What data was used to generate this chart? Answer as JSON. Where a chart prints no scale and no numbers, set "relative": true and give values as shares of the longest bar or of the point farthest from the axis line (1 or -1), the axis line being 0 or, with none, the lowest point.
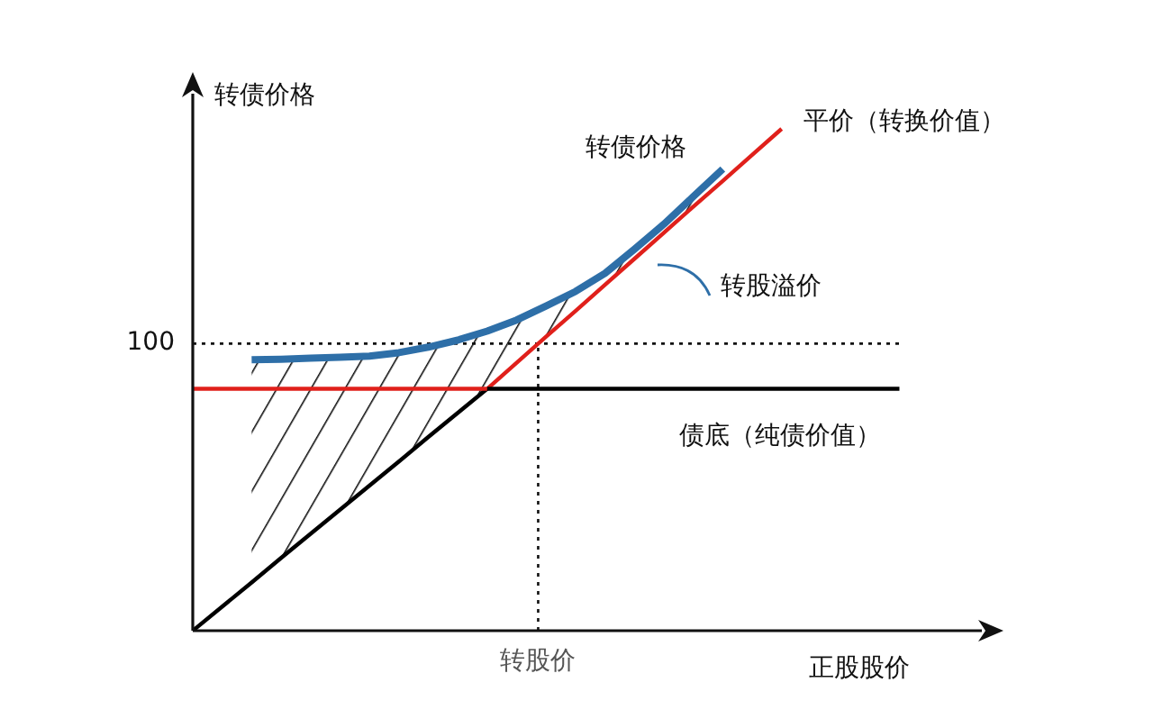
{
  "chart_data": {
    "type": "line",
    "relative": true,
    "ylabel": "转债价格",
    "xlabel": "正股股价",
    "categories": [
      null,
      null,
      null,
      null,
      null,
      null,
      null,
      null,
      null,
      null,
      null,
      null,
      null,
      null,
      null,
      null,
      null,
      null,
      null,
      null,
      null,
      null,
      null,
      null,
      null
    ],
    "series": [
      {
        "color": "#000000",
        "values": [
          0,
          0.048,
          0.096,
          0.145,
          0.193,
          0.241,
          0.289,
          0.337,
          0.386,
          0.434,
          0.482,
          null,
          null,
          null,
          null,
          null,
          null,
          null,
          null,
          null,
          null,
          null,
          null,
          null,
          null
        ]
      },
      {
        "name": "平价（转换价值）",
        "color": "#e0201b",
        "values": [
          null,
          null,
          null,
          null,
          null,
          null,
          null,
          null,
          null,
          null,
          0.482,
          0.534,
          0.586,
          0.637,
          0.689,
          0.741,
          0.793,
          0.845,
          0.896,
          0.948,
          1,
          null,
          null,
          null,
          null
        ]
      },
      {
        "color": "#e0201b",
        "values": [
          0.482,
          0.482,
          0.482,
          0.482,
          0.482,
          0.482,
          0.482,
          0.482,
          0.482,
          0.482,
          0.482,
          null,
          null,
          null,
          null,
          null,
          null,
          null,
          null,
          null,
          null,
          null,
          null,
          null,
          null
        ]
      },
      {
        "name": "债底（纯债价值）",
        "color": "#000000",
        "values": [
          null,
          null,
          null,
          null,
          null,
          null,
          null,
          null,
          null,
          null,
          0.482,
          0.482,
          0.482,
          0.482,
          0.482,
          0.482,
          0.482,
          0.482,
          0.482,
          0.482,
          0.482,
          0.482,
          0.482,
          0.482,
          0.482
        ]
      },
      {
        "name": "转债价格",
        "color": "#2e6fa8",
        "values": [
          null,
          null,
          0.54,
          0.541,
          0.543,
          0.545,
          0.547,
          0.554,
          0.565,
          0.579,
          0.597,
          0.619,
          0.647,
          0.676,
          0.712,
          0.76,
          0.81,
          0.865,
          0.92,
          null,
          null,
          null,
          null,
          null,
          null
        ],
        "lower": [
          null,
          null,
          0.096,
          0.145,
          0.193,
          0.241,
          0.289,
          0.337,
          0.386,
          0.434,
          0.482,
          0.534,
          0.586,
          0.637,
          0.689,
          0.741,
          0.793,
          0.845,
          0.896,
          null,
          null,
          null,
          null,
          null,
          null
        ],
        "upper": [
          null,
          null,
          0.54,
          0.541,
          0.543,
          0.545,
          0.547,
          0.554,
          0.565,
          0.579,
          0.597,
          0.619,
          0.647,
          0.676,
          0.712,
          0.76,
          0.81,
          0.865,
          0.92,
          null,
          null,
          null,
          null,
          null,
          null
        ]
      }
    ],
    "ref_lines": [
      {
        "axis": "y",
        "value": 0.572,
        "line_style": "dotted"
      }
    ],
    "annotations": [
      "转股溢价",
      "100",
      "转股价"
    ],
    "grid": false,
    "legend": false,
    "marker": "none",
    "line_style": "solid"
  }
}
